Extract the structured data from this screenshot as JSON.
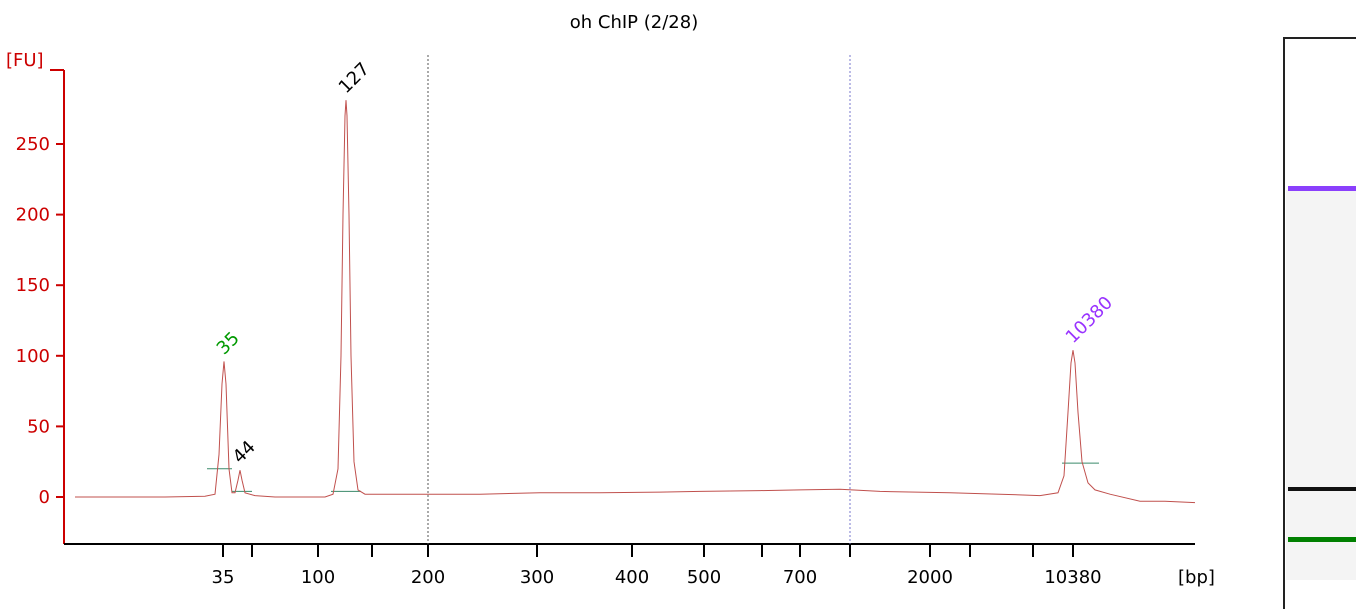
{
  "chart_data": {
    "type": "line",
    "title": "oh ChIP (2/28)",
    "ylabel": "[FU]",
    "xlabel": "[bp]",
    "ylim": [
      -35,
      295
    ],
    "y_ticks": [
      0,
      50,
      100,
      150,
      200,
      250
    ],
    "x_ticks": [
      {
        "label": "35",
        "pos": 223
      },
      {
        "label": "",
        "pos": 252
      },
      {
        "label": "100",
        "pos": 318
      },
      {
        "label": "",
        "pos": 372
      },
      {
        "label": "200",
        "pos": 428
      },
      {
        "label": "300",
        "pos": 537
      },
      {
        "label": "400",
        "pos": 632
      },
      {
        "label": "500",
        "pos": 704
      },
      {
        "label": "",
        "pos": 762
      },
      {
        "label": "700",
        "pos": 800
      },
      {
        "label": "",
        "pos": 850
      },
      {
        "label": "2000",
        "pos": 930
      },
      {
        "label": "",
        "pos": 970
      },
      {
        "label": "",
        "pos": 1033
      },
      {
        "label": "10380",
        "pos": 1073
      }
    ],
    "series": [
      {
        "color": "#c0504d",
        "points": [
          [
            75,
            0
          ],
          [
            165,
            0
          ],
          [
            205,
            0.5
          ],
          [
            215,
            2
          ],
          [
            219,
            30
          ],
          [
            222,
            80
          ],
          [
            224,
            96
          ],
          [
            226,
            80
          ],
          [
            229,
            20
          ],
          [
            232,
            3
          ],
          [
            235,
            3
          ],
          [
            238,
            12
          ],
          [
            240,
            19
          ],
          [
            242,
            12
          ],
          [
            245,
            3
          ],
          [
            255,
            1
          ],
          [
            275,
            0
          ],
          [
            300,
            0
          ],
          [
            325,
            0
          ],
          [
            333,
            2
          ],
          [
            338,
            20
          ],
          [
            341,
            100
          ],
          [
            343,
            200
          ],
          [
            345,
            270
          ],
          [
            346,
            281
          ],
          [
            347,
            270
          ],
          [
            349,
            200
          ],
          [
            351,
            100
          ],
          [
            354,
            25
          ],
          [
            358,
            5
          ],
          [
            365,
            2
          ],
          [
            390,
            2
          ],
          [
            430,
            2
          ],
          [
            480,
            2
          ],
          [
            540,
            3
          ],
          [
            600,
            3
          ],
          [
            660,
            3.5
          ],
          [
            700,
            4
          ],
          [
            760,
            4.5
          ],
          [
            800,
            5
          ],
          [
            840,
            5.5
          ],
          [
            880,
            4
          ],
          [
            950,
            3
          ],
          [
            1000,
            2
          ],
          [
            1040,
            1
          ],
          [
            1058,
            3
          ],
          [
            1064,
            15
          ],
          [
            1068,
            60
          ],
          [
            1071,
            95
          ],
          [
            1073,
            104
          ],
          [
            1075,
            95
          ],
          [
            1078,
            60
          ],
          [
            1082,
            25
          ],
          [
            1088,
            10
          ],
          [
            1095,
            5
          ],
          [
            1110,
            2
          ],
          [
            1140,
            -3
          ],
          [
            1165,
            -3
          ],
          [
            1195,
            -4
          ]
        ]
      }
    ],
    "peaks": [
      {
        "label": "35",
        "x": 224,
        "y": 96,
        "color": "#009900"
      },
      {
        "label": "44",
        "x": 240,
        "y": 19,
        "color": "#000000"
      },
      {
        "label": "127",
        "x": 346,
        "y": 281,
        "color": "#000000"
      },
      {
        "label": "10380",
        "x": 1073,
        "y": 104,
        "color": "#9933ff"
      }
    ],
    "ladder_markers": [
      {
        "y": 20,
        "x1": 207,
        "x2": 232
      },
      {
        "y": 4,
        "x1": 232,
        "x2": 252
      },
      {
        "y": 4,
        "x1": 331,
        "x2": 361
      },
      {
        "y": 24,
        "x1": 1062,
        "x2": 1099
      }
    ],
    "vertical_dotted_lines": [
      {
        "pos": 428,
        "color": "#555555"
      },
      {
        "pos": 850,
        "color": "#7777cc"
      }
    ],
    "grid": false,
    "gel_lane": {
      "bands": [
        {
          "color": "#8a3ffc",
          "level": "upper"
        },
        {
          "color": "#111111",
          "level": "lower"
        },
        {
          "color": "#008000",
          "level": "bottom"
        }
      ]
    }
  }
}
